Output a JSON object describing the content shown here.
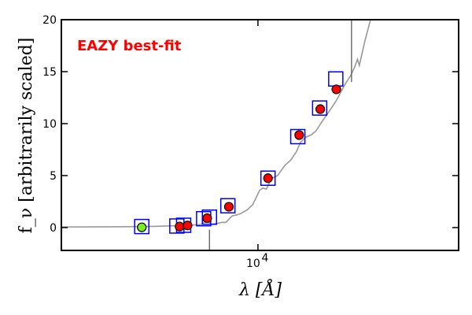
{
  "chart_data": {
    "type": "scatter",
    "title": "EAZY best-fit",
    "title_color": "#ff0000",
    "xlabel": "λ [Å]",
    "ylabel": "f_ν [arbitrarily scaled]",
    "x_scale": "log",
    "xlim": [
      3200,
      32000
    ],
    "ylim": [
      -2.2,
      20
    ],
    "y_ticks": [
      0,
      5,
      10,
      15,
      20
    ],
    "x_tick_label": {
      "value": 10000,
      "base": "10",
      "exponent": "4"
    },
    "grid": false,
    "series": [
      {
        "kind": "template-spectrum",
        "color": "#999999",
        "points": [
          [
            3200,
            0.05
          ],
          [
            4500,
            0.08
          ],
          [
            5500,
            0.12
          ],
          [
            6600,
            0.2
          ],
          [
            7200,
            0.3
          ],
          [
            7500,
            0.8
          ],
          [
            7600,
            0.3
          ],
          [
            7900,
            0.4
          ],
          [
            8100,
            0.5
          ],
          [
            8300,
            0.5
          ],
          [
            8600,
            1.1
          ],
          [
            9000,
            1.3
          ],
          [
            9400,
            1.7
          ],
          [
            9700,
            2.2
          ],
          [
            9900,
            2.9
          ],
          [
            10100,
            3.6
          ],
          [
            10300,
            3.8
          ],
          [
            10500,
            3.7
          ],
          [
            10800,
            4.7
          ],
          [
            11200,
            5.0
          ],
          [
            11700,
            6.0
          ],
          [
            12100,
            6.5
          ],
          [
            12500,
            7.3
          ],
          [
            12800,
            8.2
          ],
          [
            13200,
            8.7
          ],
          [
            13600,
            8.9
          ],
          [
            14000,
            9.3
          ],
          [
            14500,
            10.2
          ],
          [
            15000,
            11.0
          ],
          [
            15500,
            11.8
          ],
          [
            15900,
            12.5
          ],
          [
            16300,
            13.3
          ],
          [
            16700,
            14.0
          ],
          [
            17100,
            14.6
          ],
          [
            17500,
            15.4
          ],
          [
            17800,
            16.2
          ],
          [
            18000,
            15.6
          ],
          [
            18600,
            18.0
          ],
          [
            19200,
            20.0
          ]
        ],
        "spikes": [
          {
            "x": 7550,
            "from": -0.2,
            "to": -2.2
          },
          {
            "x": 17200,
            "from": 14.0,
            "to": 20.0
          }
        ]
      },
      {
        "kind": "model-photometry-boxes",
        "color": "#0000ff",
        "points": [
          [
            5100,
            0.1
          ],
          [
            6250,
            0.15
          ],
          [
            6500,
            0.22
          ],
          [
            7300,
            0.85
          ],
          [
            7550,
            1.0
          ],
          [
            8400,
            2.1
          ],
          [
            10600,
            4.75
          ],
          [
            12600,
            8.75
          ],
          [
            14300,
            11.5
          ],
          [
            15700,
            14.3
          ]
        ]
      },
      {
        "kind": "observed-photometry",
        "color": "#ff0000",
        "points": [
          [
            6350,
            0.1
          ],
          [
            6650,
            0.2
          ],
          [
            7450,
            0.9
          ],
          [
            8450,
            2.0
          ],
          [
            10600,
            4.75
          ],
          [
            12700,
            8.9
          ],
          [
            14350,
            11.4
          ],
          [
            15750,
            13.3
          ]
        ]
      },
      {
        "kind": "observed-photometry-highlight",
        "color": "#77ee22",
        "points": [
          [
            5100,
            0.02
          ]
        ]
      }
    ]
  }
}
